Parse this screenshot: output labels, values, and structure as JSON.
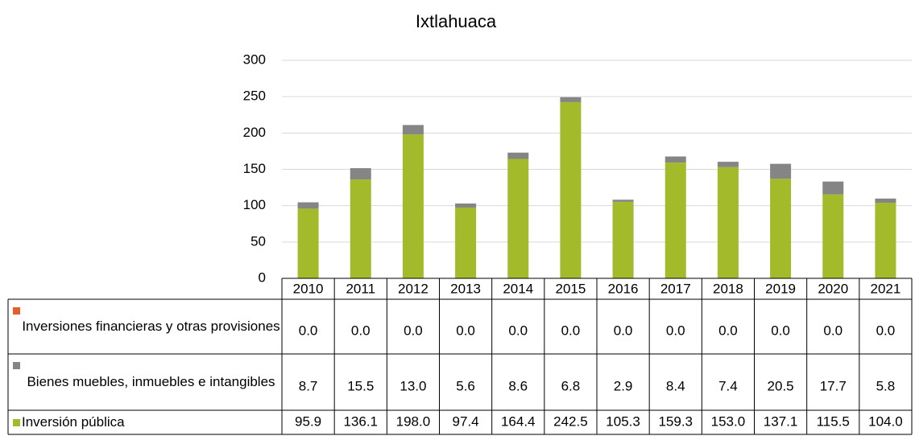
{
  "chart_data": {
    "type": "stacked_bar",
    "title": "Ixtlahuaca",
    "categories": [
      "2010",
      "2011",
      "2012",
      "2013",
      "2014",
      "2015",
      "2016",
      "2017",
      "2018",
      "2019",
      "2020",
      "2021"
    ],
    "ylim": [
      0,
      300
    ],
    "yticks": [
      0,
      50,
      100,
      150,
      200,
      250,
      300
    ],
    "series": [
      {
        "name": "Inversiones financieras y otras provisiones",
        "color": "#e2602b",
        "values": [
          0,
          0,
          0,
          0,
          0,
          0,
          0,
          0,
          0,
          0,
          0,
          0
        ],
        "value_labels": [
          "0.0",
          "0.0",
          "0.0",
          "0.0",
          "0.0",
          "0.0",
          "0.0",
          "0.0",
          "0.0",
          "0.0",
          "0.0",
          "0.0"
        ]
      },
      {
        "name": "Bienes muebles, inmuebles e intangibles",
        "color": "#858585",
        "values": [
          8.7,
          15.5,
          13,
          5.6,
          8.6,
          6.8,
          2.9,
          8.4,
          7.4,
          20.5,
          17.7,
          5.8
        ],
        "value_labels": [
          "8.7",
          "15.5",
          "13.0",
          "5.6",
          "8.6",
          "6.8",
          "2.9",
          "8.4",
          "7.4",
          "20.5",
          "17.7",
          "5.8"
        ]
      },
      {
        "name": "Inversión pública",
        "color": "#a3ba2b",
        "values": [
          95.9,
          136.1,
          198,
          97.4,
          164.4,
          242.5,
          105.3,
          159.3,
          153,
          137.1,
          115.5,
          104
        ],
        "value_labels": [
          "95.9",
          "136.1",
          "198.0",
          "97.4",
          "164.4",
          "242.5",
          "105.3",
          "159.3",
          "153.0",
          "137.1",
          "115.5",
          "104.0"
        ]
      }
    ]
  }
}
